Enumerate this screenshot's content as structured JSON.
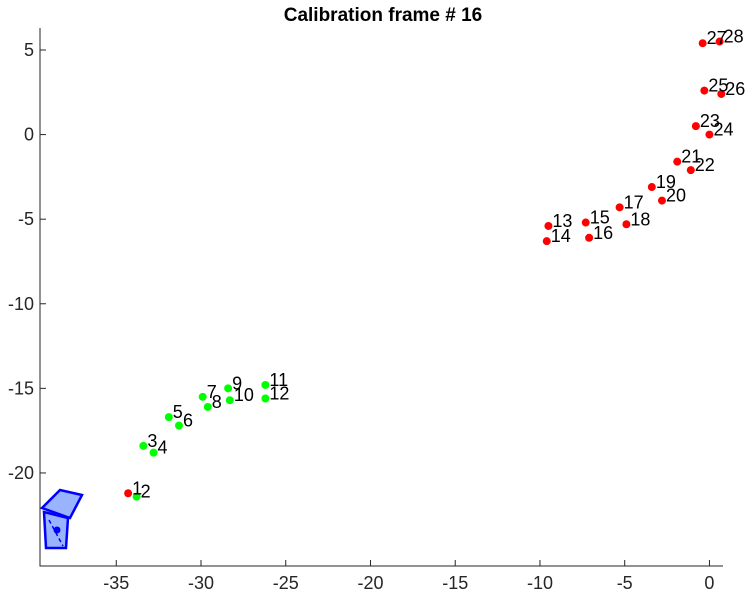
{
  "chart_data": {
    "type": "scatter",
    "title": "Calibration frame # 16",
    "xlabel": "",
    "ylabel": "",
    "xlim": [
      -39.5,
      0.8
    ],
    "ylim": [
      -25.5,
      6.3
    ],
    "xticks": [
      -35,
      -30,
      -25,
      -20,
      -15,
      -10,
      -5,
      0
    ],
    "yticks": [
      -20,
      -15,
      -10,
      -5,
      0,
      5
    ],
    "grid": false,
    "colors": {
      "red": "#ff0000",
      "green": "#00ff00",
      "camera": "#0000ff",
      "camera_fill": "#9ab3ff"
    },
    "points": [
      {
        "label": "1",
        "x": -34.3,
        "y": -21.2,
        "color": "red"
      },
      {
        "label": "2",
        "x": -33.8,
        "y": -21.4,
        "color": "green"
      },
      {
        "label": "3",
        "x": -33.4,
        "y": -18.4,
        "color": "green"
      },
      {
        "label": "4",
        "x": -32.8,
        "y": -18.8,
        "color": "green"
      },
      {
        "label": "5",
        "x": -31.9,
        "y": -16.7,
        "color": "green"
      },
      {
        "label": "6",
        "x": -31.3,
        "y": -17.2,
        "color": "green"
      },
      {
        "label": "7",
        "x": -29.9,
        "y": -15.5,
        "color": "green"
      },
      {
        "label": "8",
        "x": -29.6,
        "y": -16.1,
        "color": "green"
      },
      {
        "label": "9",
        "x": -28.4,
        "y": -15.0,
        "color": "green"
      },
      {
        "label": "10",
        "x": -28.3,
        "y": -15.7,
        "color": "green"
      },
      {
        "label": "11",
        "x": -26.2,
        "y": -14.8,
        "color": "green"
      },
      {
        "label": "12",
        "x": -26.2,
        "y": -15.6,
        "color": "green"
      },
      {
        "label": "13",
        "x": -9.5,
        "y": -5.4,
        "color": "red"
      },
      {
        "label": "14",
        "x": -9.6,
        "y": -6.3,
        "color": "red"
      },
      {
        "label": "15",
        "x": -7.3,
        "y": -5.2,
        "color": "red"
      },
      {
        "label": "16",
        "x": -7.1,
        "y": -6.1,
        "color": "red"
      },
      {
        "label": "17",
        "x": -5.3,
        "y": -4.3,
        "color": "red"
      },
      {
        "label": "18",
        "x": -4.9,
        "y": -5.3,
        "color": "red"
      },
      {
        "label": "19",
        "x": -3.4,
        "y": -3.1,
        "color": "red"
      },
      {
        "label": "20",
        "x": -2.8,
        "y": -3.9,
        "color": "red"
      },
      {
        "label": "21",
        "x": -1.9,
        "y": -1.6,
        "color": "red"
      },
      {
        "label": "22",
        "x": -1.1,
        "y": -2.1,
        "color": "red"
      },
      {
        "label": "23",
        "x": -0.8,
        "y": 0.5,
        "color": "red"
      },
      {
        "label": "24",
        "x": 0.0,
        "y": 0.0,
        "color": "red"
      },
      {
        "label": "25",
        "x": -0.3,
        "y": 2.6,
        "color": "red"
      },
      {
        "label": "26",
        "x": 0.7,
        "y": 2.4,
        "color": "red"
      },
      {
        "label": "27",
        "x": -0.4,
        "y": 5.4,
        "color": "red"
      },
      {
        "label": "28",
        "x": 0.6,
        "y": 5.5,
        "color": "red"
      }
    ]
  }
}
